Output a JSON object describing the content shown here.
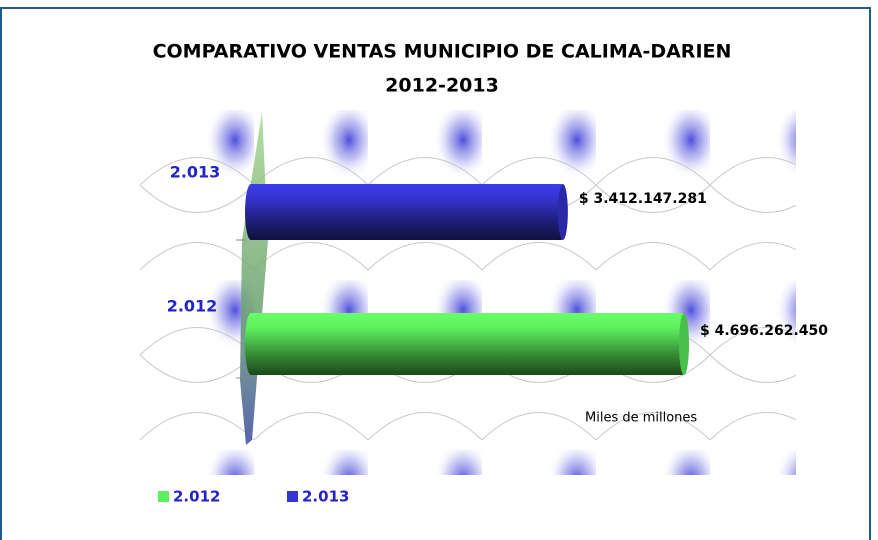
{
  "chart_data": {
    "type": "bar",
    "orientation": "horizontal",
    "title": [
      "COMPARATIVO VENTAS  MUNICIPIO DE CALIMA-DARIEN",
      "2012-2013"
    ],
    "categories": [
      "2.012",
      "2.013"
    ],
    "series": [
      {
        "name": "2.012",
        "color": "#5cf05c",
        "values": [
          4696262450,
          null
        ],
        "value_labels": [
          "$ 4.696.262.450",
          null
        ]
      },
      {
        "name": "2.013",
        "color": "#3434d0",
        "values": [
          null,
          3412147281
        ],
        "value_labels": [
          null,
          "$ 3.412.147.281"
        ]
      }
    ],
    "annotation": "Miles de millones"
  }
}
